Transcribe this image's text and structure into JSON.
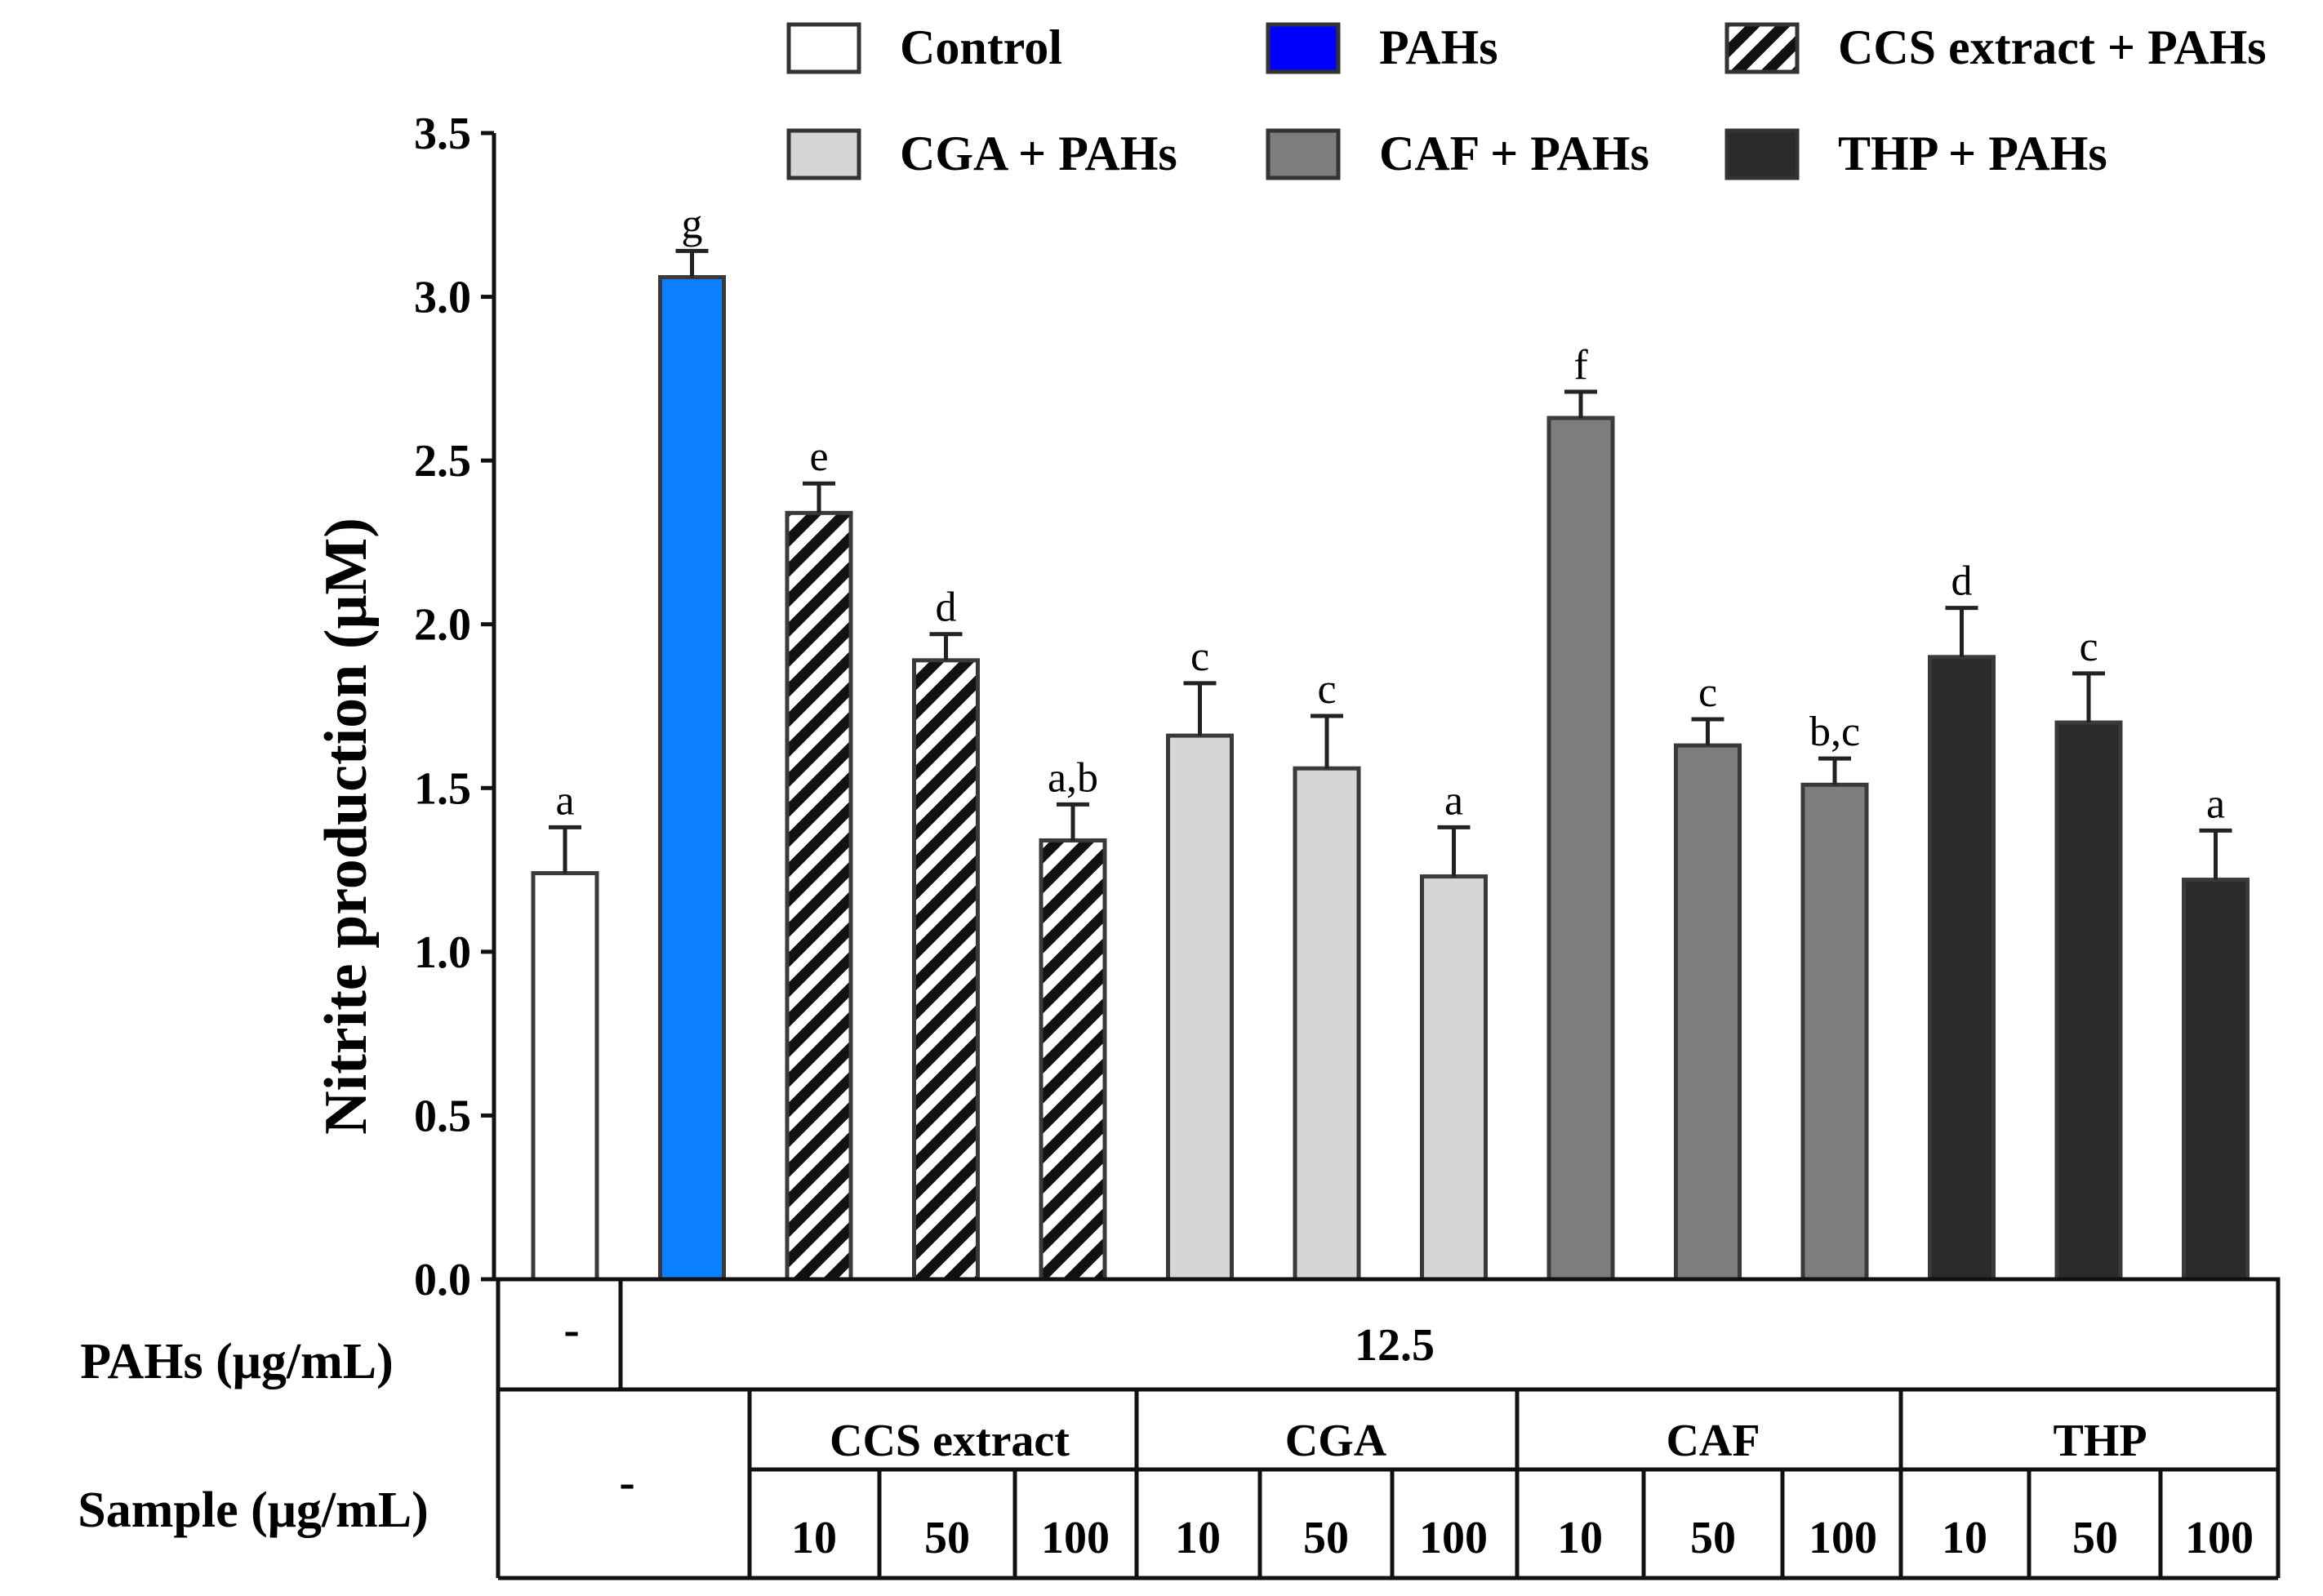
{
  "chart_data": {
    "type": "bar",
    "ylabel": "Nitrite production (μM)",
    "ylim": [
      0,
      3.5
    ],
    "yticks": [
      "0.0",
      "0.5",
      "1.0",
      "1.5",
      "2.0",
      "2.5",
      "3.0",
      "3.5"
    ],
    "legend": [
      {
        "label": "Control",
        "style": "white"
      },
      {
        "label": "PAHs",
        "style": "blue"
      },
      {
        "label": "CCS extract + PAHs",
        "style": "hatch"
      },
      {
        "label": "CGA + PAHs",
        "style": "lightgray"
      },
      {
        "label": "CAF + PAHs",
        "style": "gray"
      },
      {
        "label": "THP + PAHs",
        "style": "black"
      }
    ],
    "bars": [
      {
        "group": "Control",
        "style": "white",
        "value": 1.24,
        "error": 0.14,
        "letter": "a"
      },
      {
        "group": "PAHs",
        "style": "blue",
        "value": 3.06,
        "error": 0.08,
        "letter": "g"
      },
      {
        "group": "CCS extract + PAHs",
        "style": "hatch",
        "value": 2.34,
        "error": 0.09,
        "letter": "e"
      },
      {
        "group": "CCS extract + PAHs",
        "style": "hatch",
        "value": 1.89,
        "error": 0.08,
        "letter": "d"
      },
      {
        "group": "CCS extract + PAHs",
        "style": "hatch",
        "value": 1.34,
        "error": 0.11,
        "letter": "a,b"
      },
      {
        "group": "CGA + PAHs",
        "style": "lightgray",
        "value": 1.66,
        "error": 0.16,
        "letter": "c"
      },
      {
        "group": "CGA + PAHs",
        "style": "lightgray",
        "value": 1.56,
        "error": 0.16,
        "letter": "c"
      },
      {
        "group": "CGA + PAHs",
        "style": "lightgray",
        "value": 1.23,
        "error": 0.15,
        "letter": "a"
      },
      {
        "group": "CAF + PAHs",
        "style": "gray",
        "value": 2.63,
        "error": 0.08,
        "letter": "f"
      },
      {
        "group": "CAF + PAHs",
        "style": "gray",
        "value": 1.63,
        "error": 0.08,
        "letter": "c"
      },
      {
        "group": "CAF + PAHs",
        "style": "gray",
        "value": 1.51,
        "error": 0.08,
        "letter": "b,c"
      },
      {
        "group": "THP + PAHs",
        "style": "black",
        "value": 1.9,
        "error": 0.15,
        "letter": "d"
      },
      {
        "group": "THP + PAHs",
        "style": "black",
        "value": 1.7,
        "error": 0.15,
        "letter": "c"
      },
      {
        "group": "THP + PAHs",
        "style": "black",
        "value": 1.22,
        "error": 0.15,
        "letter": "a"
      }
    ],
    "colors": {
      "white": "#ffffff",
      "blue": "#0a80ff",
      "legend_blue": "#0000ff",
      "lightgray": "#d6d6d6",
      "gray": "#7d7d7d",
      "black": "#2b2b2b",
      "edge": "#3a3a3a"
    },
    "table": {
      "pahs_label": "PAHs (μg/mL)",
      "pahs_none": "-",
      "pahs_value": "12.5",
      "sample_label": "Sample (μg/mL)",
      "sample_none": "-",
      "groups": [
        "CCS extract",
        "CGA",
        "CAF",
        "THP"
      ],
      "concentrations": [
        "10",
        "50",
        "100",
        "10",
        "50",
        "100",
        "10",
        "50",
        "100",
        "10",
        "50",
        "100"
      ]
    }
  }
}
